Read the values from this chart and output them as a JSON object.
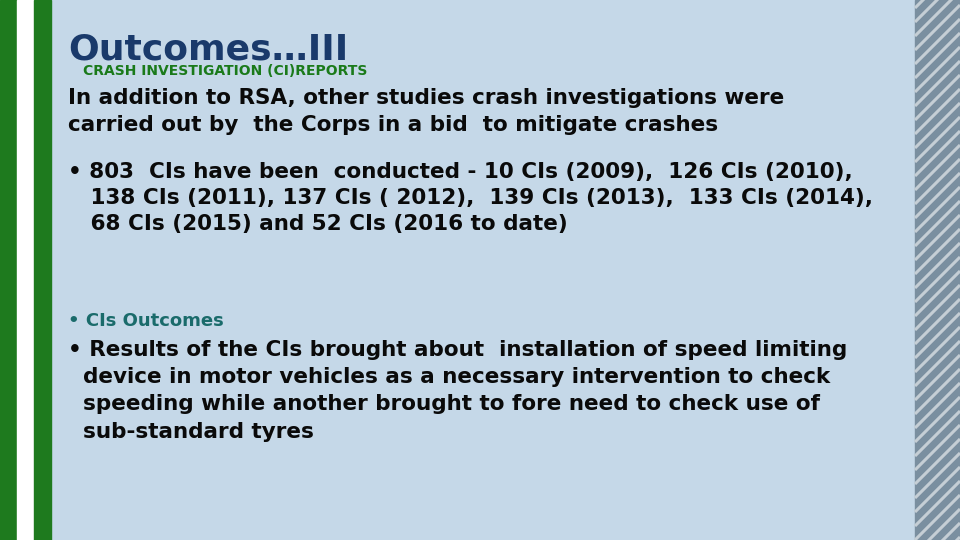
{
  "bg_color": "#c5d8e8",
  "title": "Outcomes…III",
  "subtitle": "CRASH INVESTIGATION (CI)REPORTS",
  "title_color": "#1a3a6b",
  "subtitle_color": "#1a7a1a",
  "body_color": "#0a0a0a",
  "bullet_color": "#0a0a0a",
  "ci_outcome_color": "#1a6b6b",
  "para1": "In addition to RSA, other studies crash investigations were\ncarried out by  the Corps in a bid  to mitigate crashes",
  "bullet1": "• 803  CIs have been  conducted - 10 CIs (2009),  126 CIs (2010),\n   138 CIs (2011), 137 CIs ( 2012),  139 CIs (2013),  133 CIs (2014),\n   68 CIs (2015) and 52 CIs (2016 to date)",
  "bullet2": "• CIs Outcomes",
  "bullet3": "• Results of the CIs brought about  installation of speed limiting\n  device in motor vehicles as a necessary intervention to check\n  speeding while another brought to fore need to check use of\n  sub-standard tyres",
  "title_fontsize": 26,
  "subtitle_fontsize": 10,
  "body_fontsize": 15.5,
  "ci_outcomes_fontsize": 13,
  "left_green": "#1e7a1e",
  "left_white": "#ffffff",
  "right_bar_base": "#7a8fa0",
  "right_stripe": "#a0b4c0"
}
